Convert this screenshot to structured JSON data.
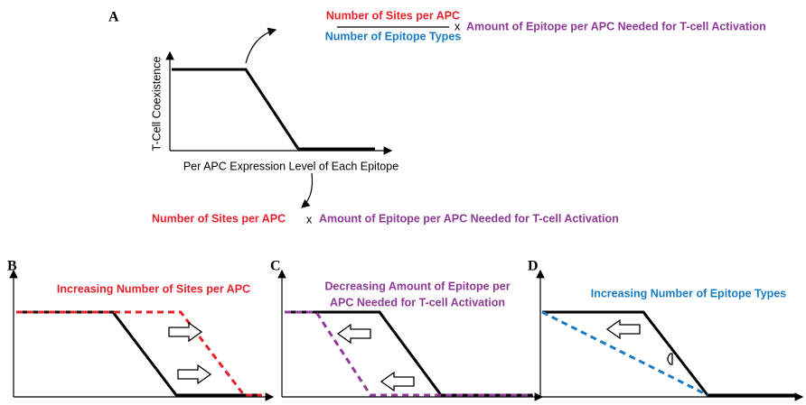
{
  "panel_a": {
    "label": "A",
    "fraction_numerator": "Number of Sites per APC",
    "fraction_denominator": "Number of Epitope Types",
    "times": "x",
    "activation_amount": "Amount of Epitope per APC Needed for T-cell Activation",
    "y_axis_label": "T-Cell Coexistence",
    "x_axis_label": "Per APC Expression Level of Each Epitope",
    "result_sites": "Number of Sites per APC",
    "result_times": "x",
    "result_amount": "Amount of Epitope per APC Needed for T-cell Activation"
  },
  "panel_b": {
    "label": "B",
    "title": "Increasing Number of Sites per APC"
  },
  "panel_c": {
    "label": "C",
    "title_lines": [
      "Decreasing Amount of Epitope per",
      "APC Needed for T-cell Activation"
    ]
  },
  "panel_d": {
    "label": "D",
    "title": "Increasing Number of Epitope Types"
  }
}
